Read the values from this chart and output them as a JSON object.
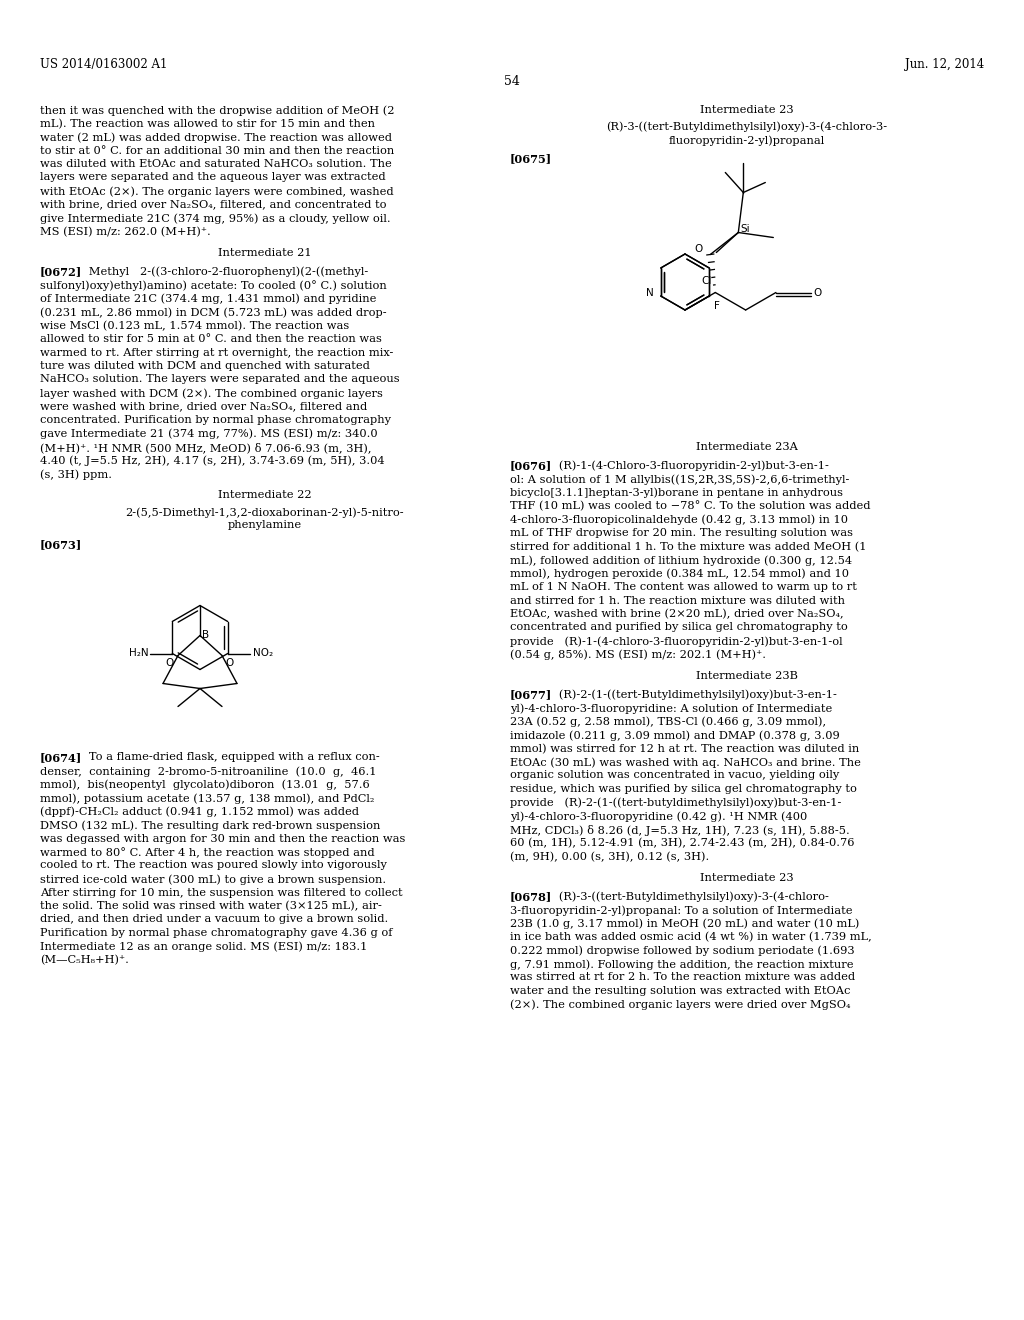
{
  "page_width": 10.24,
  "page_height": 13.2,
  "background_color": "#ffffff",
  "header_left": "US 2014/0163002 A1",
  "header_right": "Jun. 12, 2014",
  "page_number": "54"
}
